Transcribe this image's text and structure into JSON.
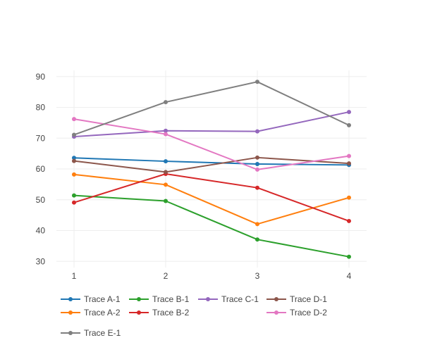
{
  "chart_data": {
    "type": "line",
    "title": "",
    "xlabel": "",
    "ylabel": "",
    "x": [
      1,
      2,
      3,
      4
    ],
    "xticks": [
      1,
      2,
      3,
      4
    ],
    "yticks": [
      30,
      40,
      50,
      60,
      70,
      80,
      90
    ],
    "xlim": [
      1,
      4
    ],
    "ylim": [
      28,
      92
    ],
    "grid": true,
    "legend_position": "bottom",
    "series": [
      {
        "name": "Trace A-1",
        "color": "#1f77b4",
        "values": [
          63.6,
          62.5,
          61.6,
          61.3
        ]
      },
      {
        "name": "Trace A-2",
        "color": "#ff7f0e",
        "values": [
          58.2,
          54.9,
          42.1,
          50.7
        ]
      },
      {
        "name": "Trace B-1",
        "color": "#2ca02c",
        "values": [
          51.4,
          49.6,
          37.1,
          31.5
        ]
      },
      {
        "name": "Trace B-2",
        "color": "#d62728",
        "values": [
          49.1,
          58.4,
          53.9,
          43.1
        ]
      },
      {
        "name": "Trace C-1",
        "color": "#9467bd",
        "values": [
          70.5,
          72.4,
          72.2,
          78.5
        ]
      },
      {
        "name": "Trace D-1",
        "color": "#8c564b",
        "values": [
          62.6,
          59.0,
          63.7,
          61.8
        ]
      },
      {
        "name": "Trace D-2",
        "color": "#e377c2",
        "values": [
          76.2,
          71.3,
          59.8,
          64.2
        ]
      },
      {
        "name": "Trace E-1",
        "color": "#7f7f7f",
        "values": [
          71.1,
          81.7,
          88.3,
          74.2
        ]
      }
    ],
    "legend_layout": [
      [
        "Trace A-1",
        "Trace B-1",
        "Trace C-1",
        "Trace D-1"
      ],
      [
        "Trace A-2",
        "Trace B-2",
        "",
        "Trace D-2"
      ],
      [
        "Trace E-1"
      ]
    ]
  }
}
